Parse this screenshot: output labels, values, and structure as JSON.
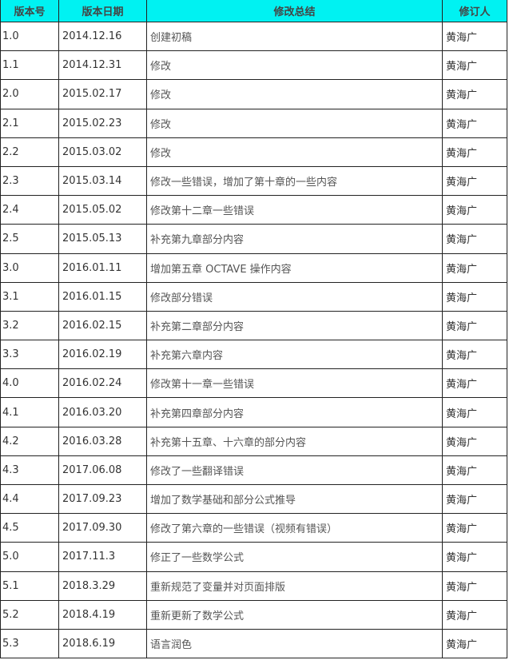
{
  "header": {
    "version": "版本号",
    "date": "版本日期",
    "summary": "修改总结",
    "author": "修订人"
  },
  "colors": {
    "header_bg": "#00f2f2",
    "border": "#222222"
  },
  "rows": [
    {
      "version": "1.0",
      "date": "2014.12.16",
      "summary": "创建初稿",
      "author": "黄海广"
    },
    {
      "version": "1.1",
      "date": "2014.12.31",
      "summary": "修改",
      "author": "黄海广"
    },
    {
      "version": "2.0",
      "date": "2015.02.17",
      "summary": "修改",
      "author": "黄海广"
    },
    {
      "version": "2.1",
      "date": "2015.02.23",
      "summary": "修改",
      "author": "黄海广"
    },
    {
      "version": "2.2",
      "date": "2015.03.02",
      "summary": "修改",
      "author": "黄海广"
    },
    {
      "version": "2.3",
      "date": "2015.03.14",
      "summary": "修改一些错误，增加了第十章的一些内容",
      "author": "黄海广"
    },
    {
      "version": "2.4",
      "date": "2015.05.02",
      "summary": "修改第十二章一些错误",
      "author": "黄海广"
    },
    {
      "version": "2.5",
      "date": "2015.05.13",
      "summary": "补充第九章部分内容",
      "author": "黄海广"
    },
    {
      "version": "3.0",
      "date": "2016.01.11",
      "summary": "增加第五章 OCTAVE 操作内容",
      "author": "黄海广"
    },
    {
      "version": "3.1",
      "date": "2016.01.15",
      "summary": "修改部分错误",
      "author": "黄海广"
    },
    {
      "version": "3.2",
      "date": "2016.02.15",
      "summary": "补充第二章部分内容",
      "author": "黄海广"
    },
    {
      "version": "3.3",
      "date": "2016.02.19",
      "summary": "补充第六章内容",
      "author": "黄海广"
    },
    {
      "version": "4.0",
      "date": "2016.02.24",
      "summary": "修改第十一章一些错误",
      "author": "黄海广"
    },
    {
      "version": "4.1",
      "date": "2016.03.20",
      "summary": "补充第四章部分内容",
      "author": "黄海广"
    },
    {
      "version": "4.2",
      "date": "2016.03.28",
      "summary": "补充第十五章、十六章的部分内容",
      "author": "黄海广"
    },
    {
      "version": "4.3",
      "date": "2017.06.08",
      "summary": "修改了一些翻译错误",
      "author": "黄海广"
    },
    {
      "version": "4.4",
      "date": "2017.09.23",
      "summary": "增加了数学基础和部分公式推导",
      "author": "黄海广"
    },
    {
      "version": "4.5",
      "date": "2017.09.30",
      "summary": "修改了第六章的一些错误（视频有错误）",
      "author": "黄海广"
    },
    {
      "version": "5.0",
      "date": "2017.11.3",
      "summary": "修正了一些数学公式",
      "author": "黄海广"
    },
    {
      "version": "5.1",
      "date": "2018.3.29",
      "summary": "重新规范了变量并对页面排版",
      "author": "黄海广"
    },
    {
      "version": "5.2",
      "date": "2018.4.19",
      "summary": "重新更新了数学公式",
      "author": "黄海广"
    },
    {
      "version": "5.3",
      "date": "2018.6.19",
      "summary": "语言润色",
      "author": "黄海广"
    }
  ]
}
